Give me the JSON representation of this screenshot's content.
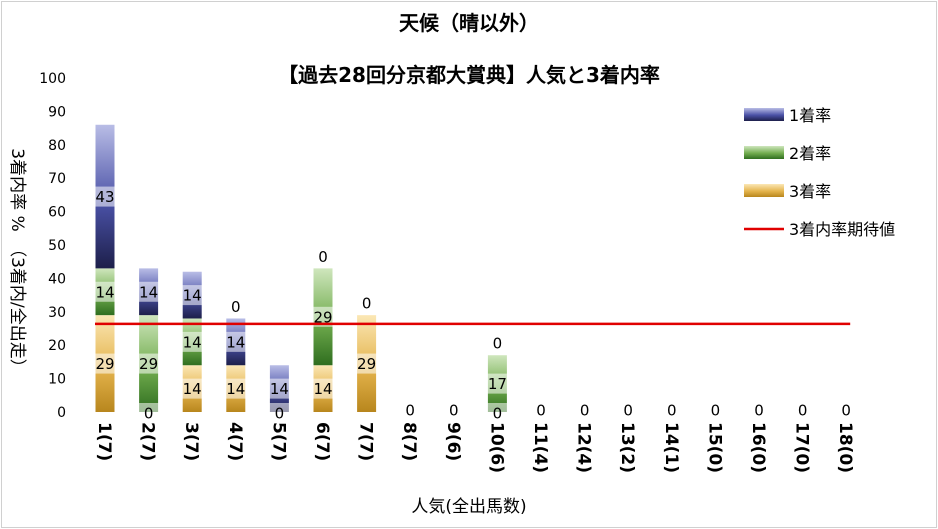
{
  "chart_data": {
    "type": "bar",
    "stacked": true,
    "title": "天候（晴以外）",
    "subtitle": "【過去28回分京都大賞典】人気と3着内率",
    "xlabel": "人気(全出馬数)",
    "ylabel": "3着内率 %　（3着内/全出走）",
    "ylim": [
      0,
      100
    ],
    "yticks": [
      "0",
      "10",
      "20",
      "30",
      "40",
      "50",
      "60",
      "70",
      "80",
      "90",
      "100"
    ],
    "categories": [
      "1(7)",
      "2(7)",
      "3(7)",
      "4(7)",
      "5(7)",
      "6(7)",
      "7(7)",
      "8(7)",
      "9(6)",
      "10(6)",
      "11(4)",
      "12(4)",
      "13(2)",
      "14(1)",
      "15(0)",
      "16(0)",
      "17(0)",
      "18(0)"
    ],
    "series": [
      {
        "name": "3着率",
        "values": [
          29,
          0,
          14,
          14,
          0,
          14,
          29,
          0,
          0,
          0,
          0,
          0,
          0,
          0,
          0,
          0,
          0,
          0
        ]
      },
      {
        "name": "2着率",
        "values": [
          14,
          29,
          14,
          0,
          0,
          29,
          0,
          0,
          0,
          17,
          0,
          0,
          0,
          0,
          0,
          0,
          0,
          0
        ]
      },
      {
        "name": "1着率",
        "values": [
          43,
          14,
          14,
          14,
          14,
          0,
          0,
          0,
          0,
          0,
          0,
          0,
          0,
          0,
          0,
          0,
          0,
          0
        ]
      }
    ],
    "data_labels": [
      [
        "29",
        "14",
        "43"
      ],
      [
        "0",
        "29",
        "14"
      ],
      [
        "14",
        "14",
        "14"
      ],
      [
        "14",
        "0",
        "14"
      ],
      [
        "0",
        "",
        "14"
      ],
      [
        "14",
        "29",
        "0"
      ],
      [
        "29",
        "",
        "0"
      ],
      [
        "0"
      ],
      [
        "0"
      ],
      [
        "0",
        "17",
        "0"
      ],
      [
        "0"
      ],
      [
        "0"
      ],
      [
        "0"
      ],
      [
        "0"
      ],
      [
        "0"
      ],
      [
        "0"
      ],
      [
        "0"
      ],
      [
        "0"
      ]
    ],
    "expected_line": {
      "name": "3着内率期待値",
      "value": 26.4,
      "color": "#e00000"
    },
    "legend": [
      "1着率",
      "2着率",
      "3着率",
      "3着内率期待値"
    ],
    "legend_position": "top-right",
    "colors": {
      "1着率": "#3a3f8c",
      "2着率": "#5a9a3a",
      "3着率": "#d8a93a"
    }
  }
}
